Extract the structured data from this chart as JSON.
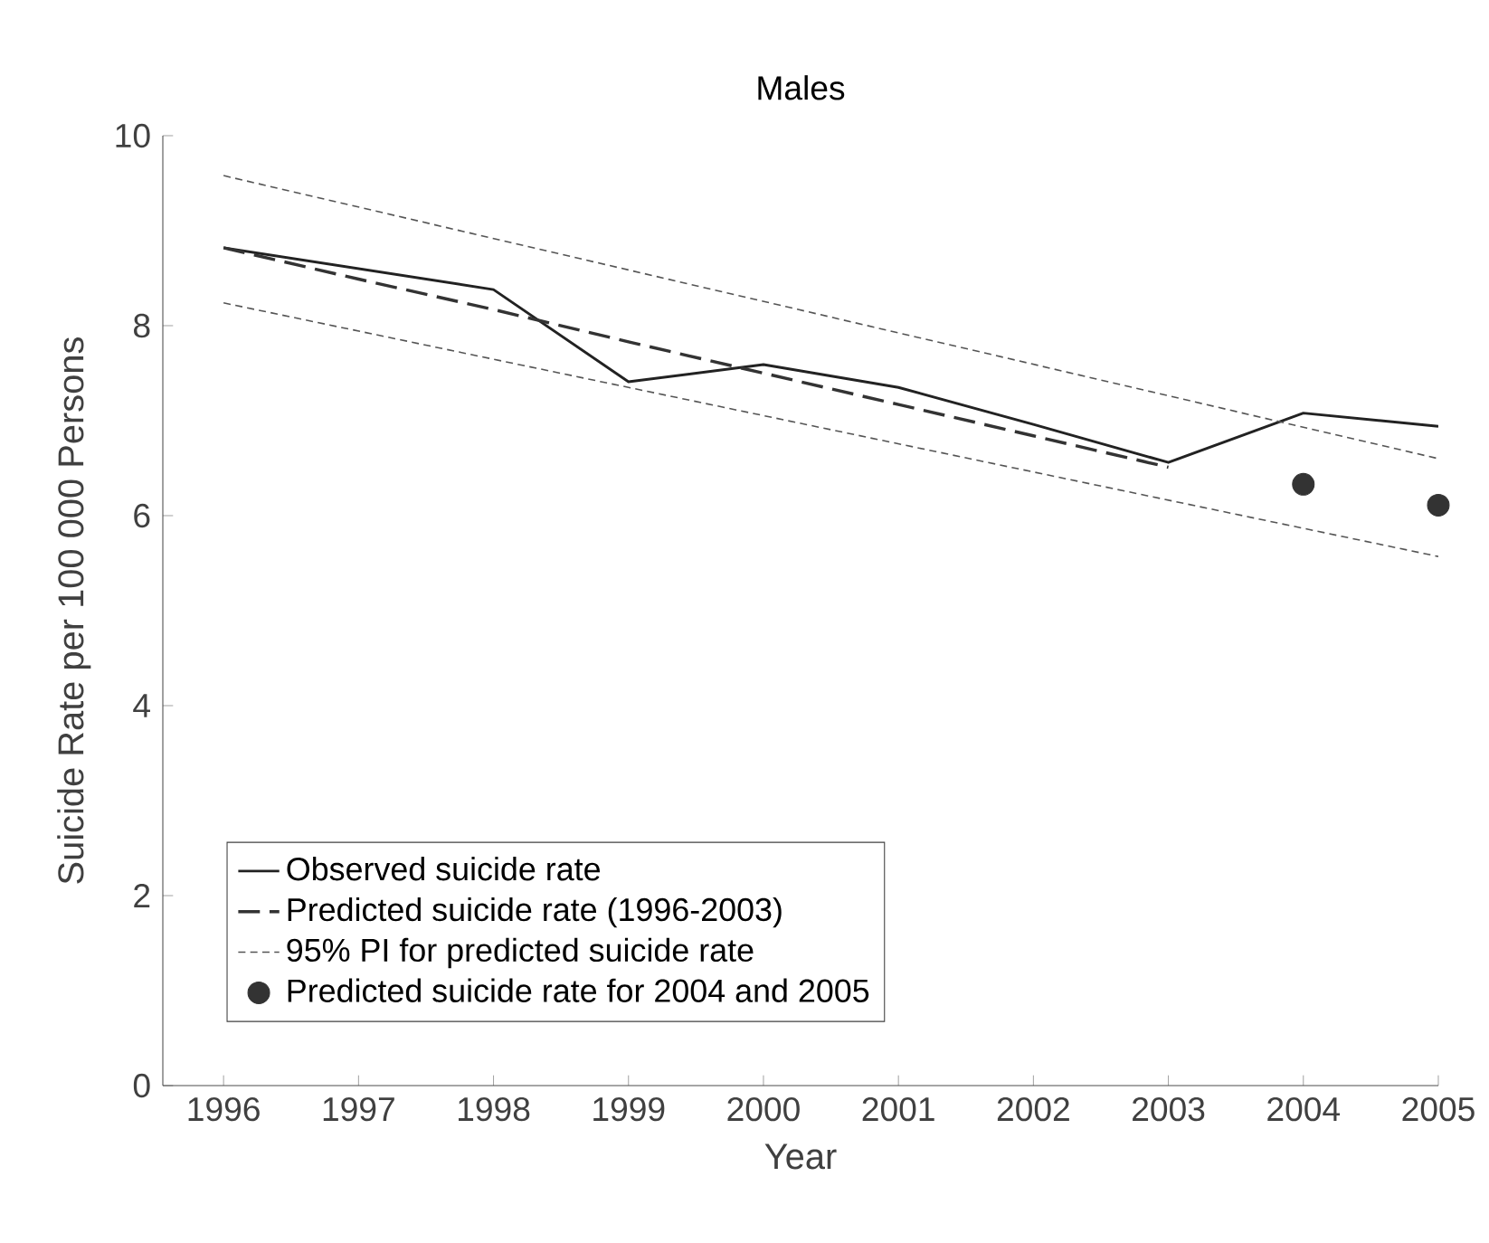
{
  "chart_data": {
    "type": "line",
    "title": "Males",
    "xlabel": "Year",
    "ylabel": "Suicide Rate per 100 000 Persons",
    "x": [
      1996,
      1997,
      1998,
      1999,
      2000,
      2001,
      2002,
      2003,
      2004,
      2005
    ],
    "series": [
      {
        "name": "Observed suicide rate",
        "color": "#222222",
        "line_style": "solid",
        "values": [
          8.82,
          8.6,
          8.38,
          7.41,
          7.59,
          7.35,
          6.96,
          6.56,
          7.08,
          6.94
        ]
      },
      {
        "name": "Predicted suicide rate (1996-2003)",
        "color": "#333333",
        "line_style": "dashed",
        "x": [
          1996,
          1997,
          1998,
          1999,
          2000,
          2001,
          2002,
          2003
        ],
        "values": [
          8.82,
          8.49,
          8.17,
          7.83,
          7.5,
          7.17,
          6.84,
          6.51
        ]
      },
      {
        "name": "95% PI for predicted suicide rate",
        "color": "#555555",
        "line_style": "dotted",
        "x": [
          1996,
          2005
        ],
        "values": [
          9.58,
          6.6
        ]
      },
      {
        "color": "#555555",
        "line_style": "dotted",
        "x": [
          1996,
          2005
        ],
        "values": [
          8.24,
          5.57
        ]
      },
      {
        "name": "Predicted suicide rate for 2004 and 2005",
        "type": "scatter",
        "marker": "circle",
        "color": "#333333",
        "x": [
          2004,
          2005
        ],
        "values": [
          6.33,
          6.11
        ]
      }
    ],
    "xlim": [
      1995.55,
      2005
    ],
    "ylim": [
      0,
      10
    ],
    "xticks": [
      1996,
      1997,
      1998,
      1999,
      2000,
      2001,
      2002,
      2003,
      2004,
      2005
    ],
    "yticks": [
      0,
      2,
      4,
      6,
      8,
      10
    ],
    "grid": false,
    "legend": "bottom left"
  }
}
